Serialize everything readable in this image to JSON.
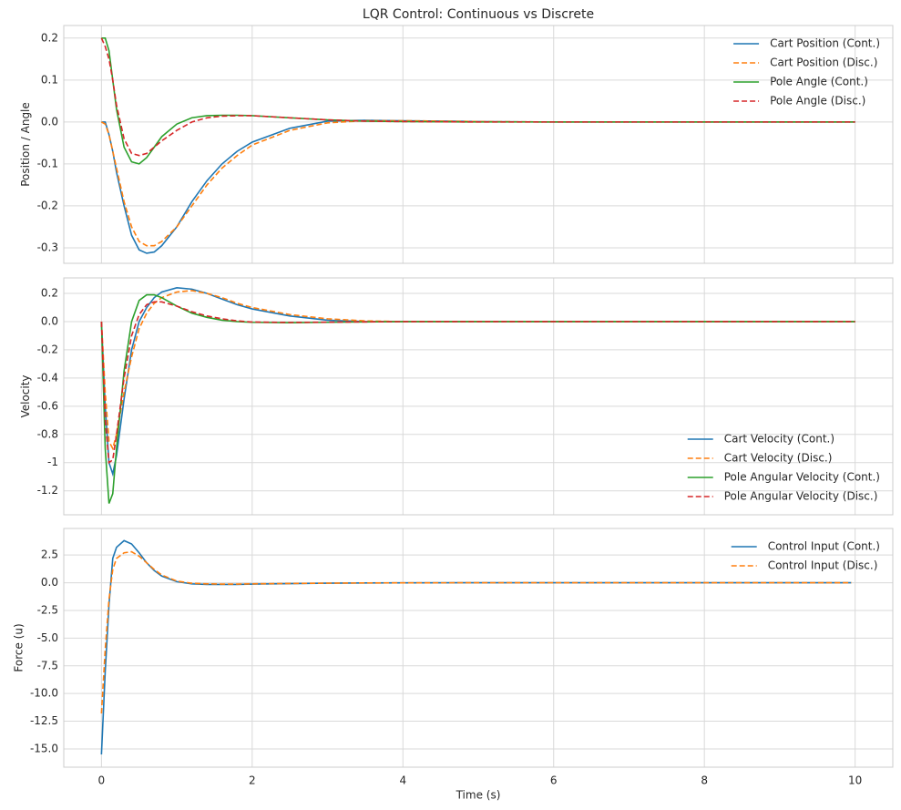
{
  "chart_data": [
    {
      "type": "line",
      "title": "LQR Control: Continuous vs Discrete",
      "ylabel": "Position / Angle",
      "x": [
        0,
        0.05,
        0.1,
        0.15,
        0.2,
        0.3,
        0.4,
        0.5,
        0.6,
        0.7,
        0.8,
        1.0,
        1.2,
        1.4,
        1.6,
        1.8,
        2.0,
        2.5,
        3,
        3.5,
        4,
        5,
        6,
        7,
        8,
        9,
        10
      ],
      "series": [
        {
          "name": "Cart Position (Cont.)",
          "color": "#1f77b4",
          "linestyle": "solid",
          "values": [
            0,
            0,
            -0.03,
            -0.07,
            -0.12,
            -0.2,
            -0.27,
            -0.305,
            -0.313,
            -0.31,
            -0.295,
            -0.25,
            -0.19,
            -0.14,
            -0.1,
            -0.07,
            -0.048,
            -0.015,
            0.002,
            0.004,
            0.003,
            0.001,
            0,
            0,
            0,
            0,
            0
          ]
        },
        {
          "name": "Cart Position (Disc.)",
          "color": "#ff7f0e",
          "linestyle": "dashed",
          "values": [
            0,
            -0.005,
            -0.03,
            -0.07,
            -0.11,
            -0.19,
            -0.25,
            -0.285,
            -0.295,
            -0.295,
            -0.285,
            -0.25,
            -0.2,
            -0.15,
            -0.11,
            -0.08,
            -0.055,
            -0.02,
            -0.002,
            0.003,
            0.003,
            0.001,
            0,
            0,
            0,
            0,
            0
          ]
        },
        {
          "name": "Pole Angle (Cont.)",
          "color": "#2ca02c",
          "linestyle": "solid",
          "values": [
            0.2,
            0.2,
            0.17,
            0.1,
            0.03,
            -0.06,
            -0.095,
            -0.1,
            -0.085,
            -0.06,
            -0.035,
            -0.005,
            0.01,
            0.015,
            0.016,
            0.016,
            0.015,
            0.01,
            0.005,
            0.002,
            0.001,
            0,
            0,
            0,
            0,
            0,
            0
          ]
        },
        {
          "name": "Pole Angle (Disc.)",
          "color": "#d62728",
          "linestyle": "dashed",
          "values": [
            0.2,
            0.18,
            0.15,
            0.1,
            0.04,
            -0.04,
            -0.075,
            -0.08,
            -0.075,
            -0.06,
            -0.045,
            -0.02,
            0,
            0.01,
            0.014,
            0.015,
            0.015,
            0.01,
            0.005,
            0.002,
            0.001,
            0,
            0,
            0,
            0,
            0,
            0
          ]
        }
      ],
      "xlim": [
        -0.5,
        10.5
      ],
      "xticks": [
        0,
        2,
        4,
        6,
        8,
        10
      ],
      "ylim": [
        -0.337,
        0.23
      ],
      "yticks": [
        -0.3,
        -0.2,
        -0.1,
        {
          "value": 0,
          "label": "0.0"
        },
        0.1,
        0.2
      ],
      "grid": true,
      "legend": "upper right"
    },
    {
      "type": "line",
      "ylabel": "Velocity",
      "x": [
        0,
        0.05,
        0.1,
        0.15,
        0.2,
        0.3,
        0.4,
        0.5,
        0.6,
        0.7,
        0.8,
        1.0,
        1.2,
        1.4,
        1.6,
        1.8,
        2.0,
        2.5,
        3,
        3.5,
        4,
        5,
        6,
        7,
        8,
        9,
        10
      ],
      "series": [
        {
          "name": "Cart Velocity (Cont.)",
          "color": "#1f77b4",
          "linestyle": "solid",
          "values": [
            0,
            -0.6,
            -1.0,
            -1.08,
            -0.95,
            -0.55,
            -0.2,
            0,
            0.1,
            0.17,
            0.21,
            0.24,
            0.23,
            0.2,
            0.16,
            0.12,
            0.09,
            0.04,
            0.01,
            0,
            0,
            0,
            0,
            0,
            0,
            0,
            0
          ]
        },
        {
          "name": "Cart Velocity (Disc.)",
          "color": "#ff7f0e",
          "linestyle": "dashed",
          "values": [
            0,
            -0.5,
            -0.85,
            -0.9,
            -0.8,
            -0.5,
            -0.25,
            -0.05,
            0.06,
            0.13,
            0.17,
            0.21,
            0.22,
            0.2,
            0.17,
            0.13,
            0.1,
            0.05,
            0.02,
            0.005,
            0,
            0,
            0,
            0,
            0,
            0,
            0
          ]
        },
        {
          "name": "Pole Angular Velocity (Cont.)",
          "color": "#2ca02c",
          "linestyle": "solid",
          "values": [
            0,
            -0.9,
            -1.29,
            -1.22,
            -0.9,
            -0.35,
            0,
            0.15,
            0.19,
            0.19,
            0.17,
            0.11,
            0.06,
            0.03,
            0.01,
            0,
            -0.005,
            -0.008,
            -0.005,
            -0.002,
            0,
            0,
            0,
            0,
            0,
            0,
            0
          ]
        },
        {
          "name": "Pole Angular Velocity (Disc.)",
          "color": "#d62728",
          "linestyle": "dashed",
          "values": [
            0,
            -0.7,
            -1.0,
            -0.98,
            -0.8,
            -0.4,
            -0.1,
            0.05,
            0.12,
            0.14,
            0.14,
            0.11,
            0.07,
            0.04,
            0.02,
            0.005,
            -0.003,
            -0.006,
            -0.004,
            -0.002,
            0,
            0,
            0,
            0,
            0,
            0,
            0
          ]
        }
      ],
      "xlim": [
        -0.5,
        10.5
      ],
      "xticks": [
        0,
        2,
        4,
        6,
        8,
        10
      ],
      "ylim": [
        -1.37,
        0.31
      ],
      "yticks": [
        -1.2,
        -1.0,
        -0.8,
        -0.6,
        -0.4,
        -0.2,
        {
          "value": 0,
          "label": "0.0"
        },
        0.2
      ],
      "grid": true,
      "legend": "lower right"
    },
    {
      "type": "line",
      "ylabel": "Force (u)",
      "xlabel": "Time (s)",
      "x": [
        0,
        0.05,
        0.1,
        0.15,
        0.2,
        0.3,
        0.4,
        0.5,
        0.6,
        0.7,
        0.8,
        1.0,
        1.2,
        1.4,
        1.6,
        1.8,
        2.0,
        2.5,
        3,
        3.5,
        4,
        5,
        6,
        7,
        8,
        9,
        9.95
      ],
      "series": [
        {
          "name": "Control Input (Cont.)",
          "color": "#1f77b4",
          "linestyle": "solid",
          "values": [
            -15.5,
            -8,
            -2,
            2.2,
            3.2,
            3.8,
            3.5,
            2.7,
            1.8,
            1.1,
            0.6,
            0.1,
            -0.1,
            -0.15,
            -0.15,
            -0.15,
            -0.12,
            -0.08,
            -0.04,
            -0.02,
            -0.01,
            0,
            0,
            0,
            0,
            0,
            0
          ]
        },
        {
          "name": "Control Input (Disc.)",
          "color": "#ff7f0e",
          "linestyle": "dashed",
          "values": [
            -11.8,
            -6,
            -1.5,
            1.2,
            2.2,
            2.7,
            2.8,
            2.4,
            1.8,
            1.2,
            0.7,
            0.15,
            -0.05,
            -0.1,
            -0.12,
            -0.12,
            -0.1,
            -0.07,
            -0.04,
            -0.02,
            -0.01,
            0,
            0,
            0,
            0,
            0,
            0
          ]
        }
      ],
      "xlim": [
        -0.5,
        10.5
      ],
      "xticks": [
        0,
        2,
        4,
        6,
        8,
        10
      ],
      "ylim": [
        -16.65,
        4.9
      ],
      "yticks": [
        {
          "value": -15,
          "label": "-15.0"
        },
        -12.5,
        {
          "value": -10,
          "label": "-10.0"
        },
        -7.5,
        {
          "value": -5,
          "label": "-5.0"
        },
        -2.5,
        {
          "value": 0,
          "label": "0.0"
        },
        2.5
      ],
      "grid": true,
      "legend": "upper right"
    }
  ]
}
